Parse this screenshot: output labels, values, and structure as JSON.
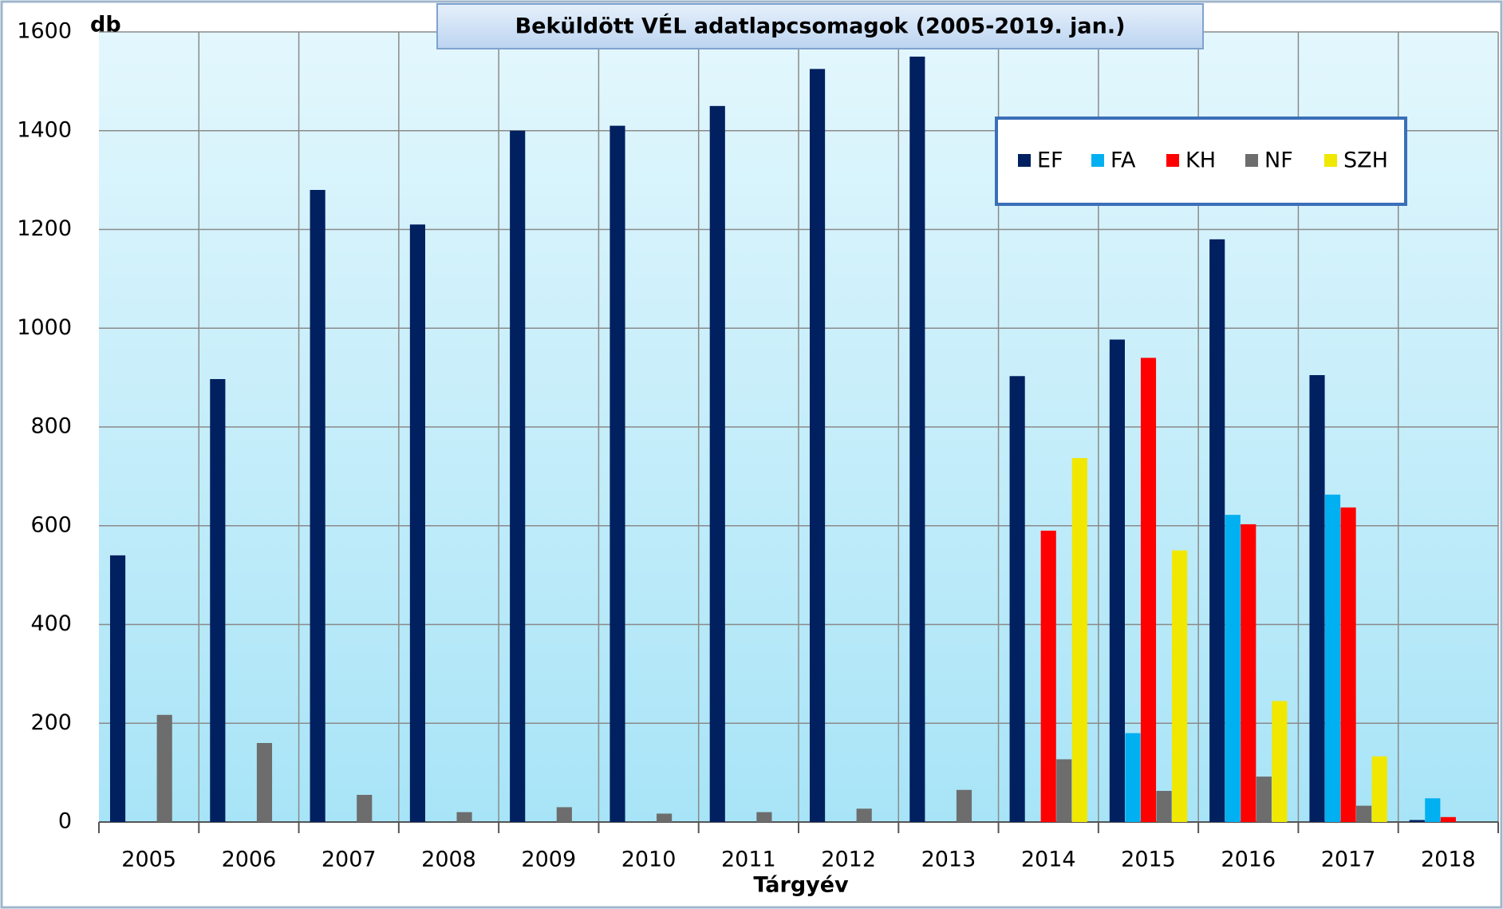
{
  "chart_data": {
    "type": "bar",
    "title": "Beküldött VÉL adatlapcsomagok (2005-2019. jan.)",
    "y_label": "db",
    "x_label": "Tárgyév",
    "categories": [
      "2005",
      "2006",
      "2007",
      "2008",
      "2009",
      "2010",
      "2011",
      "2012",
      "2013",
      "2014",
      "2015",
      "2016",
      "2017",
      "2018"
    ],
    "series": [
      {
        "name": "EF",
        "color": "#002060",
        "values": [
          540,
          897,
          1280,
          1210,
          1400,
          1410,
          1450,
          1525,
          1550,
          903,
          977,
          1180,
          905,
          4
        ]
      },
      {
        "name": "FA",
        "color": "#00b0f0",
        "values": [
          null,
          null,
          null,
          null,
          null,
          null,
          null,
          null,
          null,
          null,
          180,
          622,
          663,
          48
        ]
      },
      {
        "name": "KH",
        "color": "#ff0000",
        "values": [
          null,
          null,
          null,
          null,
          null,
          null,
          null,
          null,
          null,
          590,
          940,
          603,
          637,
          10
        ]
      },
      {
        "name": "NF",
        "color": "#6d6d6d",
        "values": [
          217,
          160,
          55,
          20,
          30,
          17,
          20,
          27,
          65,
          127,
          63,
          92,
          33,
          null
        ]
      },
      {
        "name": "SZH",
        "color": "#f0e800",
        "values": [
          null,
          null,
          null,
          null,
          null,
          null,
          null,
          null,
          null,
          737,
          550,
          245,
          133,
          null
        ]
      }
    ],
    "ylim": [
      0,
      1600
    ],
    "yticks": [
      0,
      200,
      400,
      600,
      800,
      1000,
      1200,
      1400,
      1600
    ],
    "grid": true,
    "legend": "upper right"
  }
}
